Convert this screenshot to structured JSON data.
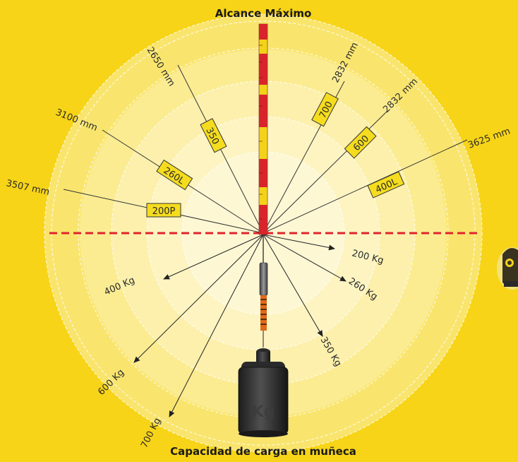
{
  "diagram": {
    "top_title": "Alcance Máximo",
    "bottom_title": "Capacidad de carga en muñeca",
    "weight_label": "Kg",
    "reach_models": [
      {
        "model": "200P",
        "reach": "3507 mm"
      },
      {
        "model": "260L",
        "reach": "3100 mm"
      },
      {
        "model": "350",
        "reach": "2650 mm"
      },
      {
        "model": "700",
        "reach": "2832 mm"
      },
      {
        "model": "600",
        "reach": "2832 mm"
      },
      {
        "model": "400L",
        "reach": "3625 mm"
      }
    ],
    "payloads": [
      {
        "label": "200 Kg"
      },
      {
        "label": "260 Kg"
      },
      {
        "label": "350 Kg"
      },
      {
        "label": "400 Kg"
      },
      {
        "label": "600 Kg"
      },
      {
        "label": "700 Kg"
      }
    ]
  },
  "colors": {
    "background": "#f7d417",
    "zone_light": "#fdf3bf",
    "divider": "#e0242a",
    "label_box": "#f5dc1e",
    "pole_red": "#d7252b",
    "pole_yellow": "#f2d31a",
    "lines": "#333333"
  }
}
